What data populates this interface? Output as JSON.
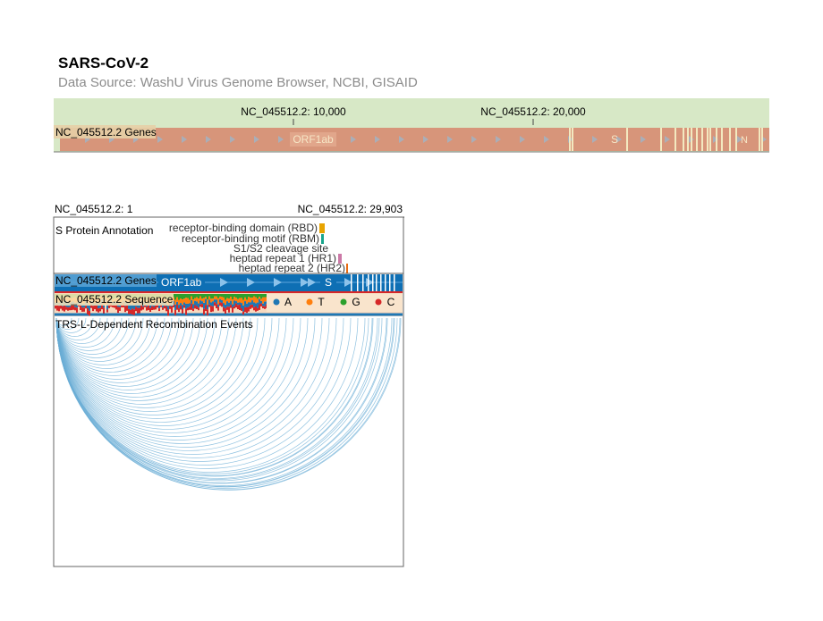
{
  "header": {
    "title": "SARS-CoV-2",
    "subtitle": "Data Source: WashU Virus Genome Browser, NCBI, GISAID"
  },
  "overview": {
    "ruler_labels": [
      "NC_045512.2: 10,000",
      "NC_045512.2: 20,000"
    ],
    "track_label": "NC_045512.2 Genes",
    "gene_labels": {
      "orf1ab": "ORF1ab",
      "s": "S",
      "n": "N"
    },
    "colors": {
      "ruler_bg": "#d7e8c6",
      "gene_fill": "#d7957a",
      "gene_line": "#f3e9c0",
      "label_bg": "#e7cfa6"
    }
  },
  "detail": {
    "range_start": "NC_045512.2: 1",
    "range_end": "NC_045512.2: 29,903",
    "annotation_track": "S Protein Annotation",
    "annotations": [
      {
        "label": "receptor-binding domain (RBD)",
        "color": "#e8a400"
      },
      {
        "label": "receptor-binding motif (RBM)",
        "color": "#18a58c"
      },
      {
        "label": "S1/S2 cleavage site",
        "color": "#8c8c8c"
      },
      {
        "label": "heptad repeat 1 (HR1)",
        "color": "#cc79a7"
      },
      {
        "label": "heptad repeat 2 (HR2)",
        "color": "#e86a10"
      }
    ],
    "genes_track": "NC_045512.2 Genes",
    "gene_labels": {
      "orf1ab": "ORF1ab",
      "s": "S"
    },
    "sequence_track": "NC_045512.2 Sequence",
    "bases": [
      {
        "label": "A",
        "color": "#1f77b4"
      },
      {
        "label": "T",
        "color": "#ff7f0e"
      },
      {
        "label": "G",
        "color": "#2ca02c"
      },
      {
        "label": "C",
        "color": "#d62728"
      }
    ],
    "recombination_track": "TRS-L-Dependent Recombination Events",
    "colors": {
      "gene_blue": "#0e6fb4",
      "arc": "#6baed6"
    }
  }
}
